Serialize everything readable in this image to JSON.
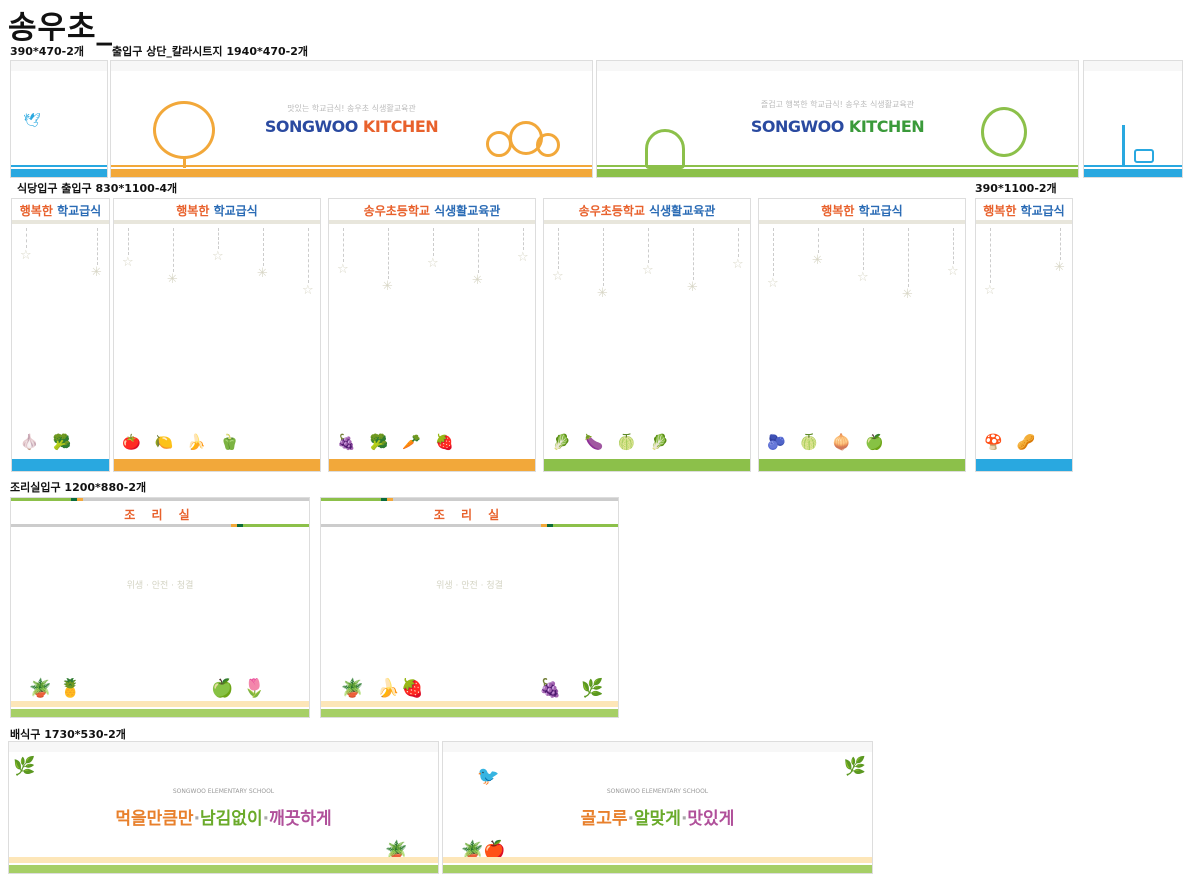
{
  "title": "송우초_",
  "labels": {
    "top_side": "390*470-2개",
    "top_main": "출입구 상단_칼라시트지 1940*470-2개",
    "cafeteria": "식당입구 출입구 830*1100-4개",
    "cafeteria_side": "390*1100-2개",
    "kitchen": "조리실입구 1200*880-2개",
    "serving": "배식구 1730*530-2개"
  },
  "banners": [
    {
      "subtitle": "맛있는 학교급식! 송우초 식생활교육관",
      "logo_a": "SONGWOO",
      "logo_b": "KITCHEN",
      "color": "#f2a83a"
    },
    {
      "subtitle": "즐겁고 행복한 학교급식! 송우초 식생활교육관",
      "logo_a": "SONGWOO",
      "logo_b": "KITCHEN",
      "color": "#8cc04a"
    }
  ],
  "tall_panels": [
    {
      "a": "행복한",
      "b": "학교급식",
      "color": "#29a8e0"
    },
    {
      "a": "행복한",
      "b": "학교급식",
      "color": "#f2a83a"
    },
    {
      "a": "송우초등학교",
      "b": "식생활교육관",
      "color": "#f2a83a"
    },
    {
      "a": "송우초등학교",
      "b": "식생활교육관",
      "color": "#8cc04a"
    },
    {
      "a": "행복한",
      "b": "학교급식",
      "color": "#8cc04a"
    },
    {
      "a": "행복한",
      "b": "학교급식",
      "color": "#29a8e0"
    }
  ],
  "kitchen": {
    "title": "조 리 실",
    "motto": "위생 · 안전 · 청결"
  },
  "serving": [
    {
      "school": "SONGWOO ELEMENTARY SCHOOL",
      "s1": "먹을만큼만",
      "s2": "남김없이",
      "s3": "깨끗하게"
    },
    {
      "school": "SONGWOO ELEMENTARY SCHOOL",
      "s1": "골고루",
      "s2": "알맞게",
      "s3": "맛있게"
    }
  ],
  "colors": {
    "blue": "#29a8e0",
    "orange": "#f2a83a",
    "green": "#8cc04a"
  }
}
